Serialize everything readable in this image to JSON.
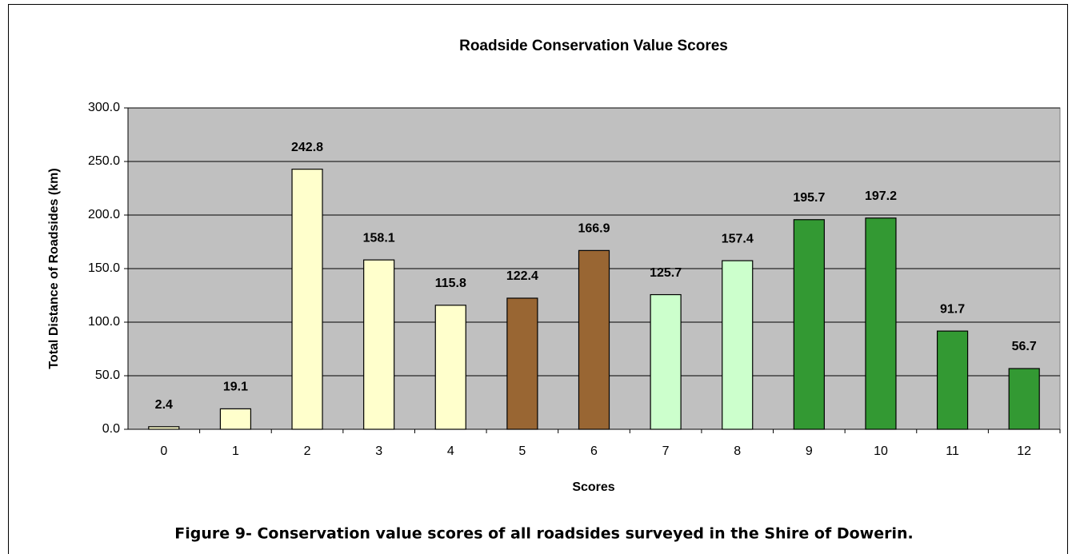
{
  "chart_data": {
    "type": "bar",
    "title": "Roadside Conservation Value Scores",
    "x_label": "Scores",
    "y_label": "Total Distance of Roadsides (km)",
    "caption": "Figure 9- Conservation value scores of all roadsides surveyed in the Shire of Dowerin.",
    "categories": [
      "0",
      "1",
      "2",
      "3",
      "4",
      "5",
      "6",
      "7",
      "8",
      "9",
      "10",
      "11",
      "12"
    ],
    "values": [
      2.4,
      19.1,
      242.8,
      158.1,
      115.8,
      122.4,
      166.9,
      125.7,
      157.4,
      195.7,
      197.2,
      91.7,
      56.7
    ],
    "colors": [
      "#ffffcc",
      "#ffffcc",
      "#ffffcc",
      "#ffffcc",
      "#ffffcc",
      "#996633",
      "#996633",
      "#ccffcc",
      "#ccffcc",
      "#339933",
      "#339933",
      "#339933",
      "#339933"
    ],
    "ylim": [
      0,
      300
    ],
    "yticks": [
      {
        "value": 0,
        "label": "0.0"
      },
      {
        "value": 50,
        "label": "50.0"
      },
      {
        "value": 100,
        "label": "100.0"
      },
      {
        "value": 150,
        "label": "150.0"
      },
      {
        "value": 200,
        "label": "200.0"
      },
      {
        "value": 250,
        "label": "250.0"
      },
      {
        "value": 300,
        "label": "300.0"
      }
    ],
    "grid": true,
    "plot_background": "#c0c0c0"
  }
}
